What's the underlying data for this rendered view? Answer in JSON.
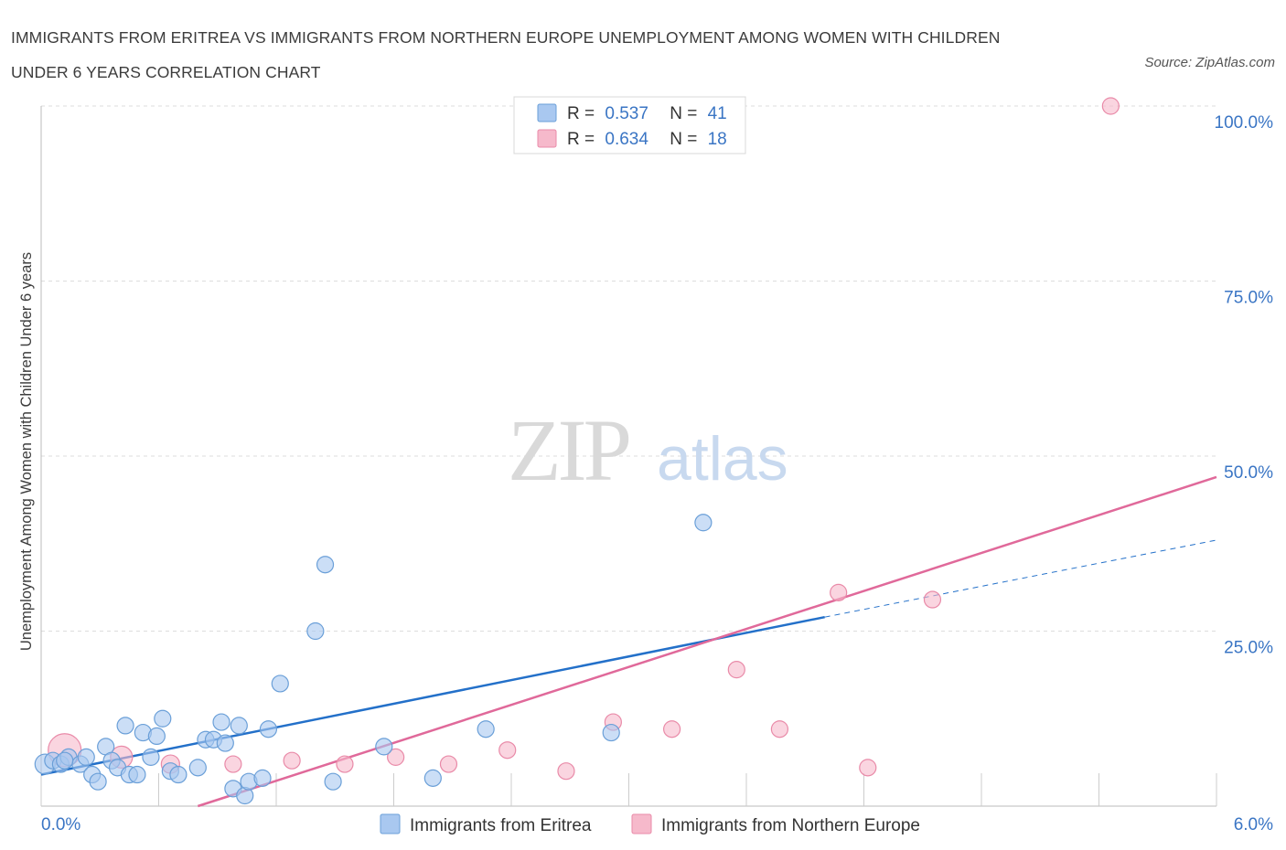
{
  "title_line1": "IMMIGRANTS FROM ERITREA VS IMMIGRANTS FROM NORTHERN EUROPE UNEMPLOYMENT AMONG WOMEN WITH CHILDREN",
  "title_line2": "UNDER 6 YEARS CORRELATION CHART",
  "source": "Source: ZipAtlas.com",
  "watermark": {
    "zip": "ZIP",
    "atlas": "atlas"
  },
  "colors": {
    "blue": "#a9c8f0",
    "blue_stroke": "#6a9fd8",
    "blue_line": "#2370c9",
    "pink": "#f6b9cb",
    "pink_stroke": "#e98aa8",
    "pink_line": "#e0699a",
    "accent_text": "#3a75c4"
  },
  "chart_data": {
    "type": "scatter",
    "title": "Immigrants from Eritrea vs Immigrants from Northern Europe Unemployment Among Women with Children Under 6 years Correlation Chart",
    "xlabel": "",
    "ylabel": "Unemployment Among Women with Children Under 6 years",
    "xlim": [
      0,
      6
    ],
    "ylim": [
      0,
      100
    ],
    "x_tick_labels": [
      "0.0%",
      "6.0%"
    ],
    "y_tick_labels": [
      "100.0%",
      "75.0%",
      "50.0%",
      "25.0%"
    ],
    "y_ticks": [
      100,
      75,
      50,
      25
    ],
    "grid": true,
    "legend": [
      {
        "name": "Immigrants from Eritrea",
        "R_label": "R =",
        "R": "0.537",
        "N_label": "N =",
        "N": "41"
      },
      {
        "name": "Immigrants from Northern Europe",
        "R_label": "R =",
        "R": "0.634",
        "N_label": "N =",
        "N": "18"
      }
    ],
    "series": [
      {
        "name": "Immigrants from Eritrea",
        "points": [
          [
            0.02,
            6.0
          ],
          [
            0.06,
            6.5
          ],
          [
            0.1,
            6.0
          ],
          [
            0.14,
            7.0
          ],
          [
            0.2,
            6.0
          ],
          [
            0.23,
            7.0
          ],
          [
            0.26,
            4.5
          ],
          [
            0.29,
            3.5
          ],
          [
            0.33,
            8.5
          ],
          [
            0.36,
            6.5
          ],
          [
            0.39,
            5.5
          ],
          [
            0.43,
            11.5
          ],
          [
            0.45,
            4.5
          ],
          [
            0.49,
            4.5
          ],
          [
            0.52,
            10.5
          ],
          [
            0.56,
            7.0
          ],
          [
            0.59,
            10.0
          ],
          [
            0.62,
            12.5
          ],
          [
            0.66,
            5.0
          ],
          [
            0.7,
            4.5
          ],
          [
            0.8,
            5.5
          ],
          [
            0.84,
            9.5
          ],
          [
            0.88,
            9.5
          ],
          [
            0.92,
            12.0
          ],
          [
            0.94,
            9.0
          ],
          [
            0.98,
            2.5
          ],
          [
            1.01,
            11.5
          ],
          [
            1.04,
            1.5
          ],
          [
            1.06,
            3.5
          ],
          [
            1.13,
            4.0
          ],
          [
            1.16,
            11.0
          ],
          [
            1.22,
            17.5
          ],
          [
            1.4,
            25.0
          ],
          [
            1.45,
            34.5
          ],
          [
            1.49,
            3.5
          ],
          [
            1.75,
            8.5
          ],
          [
            2.0,
            4.0
          ],
          [
            2.27,
            11.0
          ],
          [
            2.91,
            10.5
          ],
          [
            3.38,
            40.5
          ],
          [
            0.12,
            6.5
          ]
        ],
        "sizes": [
          11,
          9,
          9,
          9,
          9,
          9,
          9,
          9,
          9,
          9,
          9,
          9,
          9,
          9,
          9,
          9,
          9,
          9,
          9,
          9,
          9,
          9,
          9,
          9,
          9,
          9,
          9,
          9,
          9,
          9,
          9,
          9,
          9,
          9,
          9,
          9,
          9,
          9,
          9,
          9,
          9
        ],
        "trend": {
          "x0": 0,
          "y0": 4.5,
          "x1": 4.0,
          "y1": 27.0,
          "x1_dashed": 6.0,
          "y1_dashed": 38.0
        }
      },
      {
        "name": "Immigrants from Northern Europe",
        "points": [
          [
            0.12,
            8.0
          ],
          [
            0.41,
            7.0
          ],
          [
            0.66,
            6.0
          ],
          [
            0.98,
            6.0
          ],
          [
            1.28,
            6.5
          ],
          [
            1.55,
            6.0
          ],
          [
            1.81,
            7.0
          ],
          [
            2.08,
            6.0
          ],
          [
            2.38,
            8.0
          ],
          [
            2.68,
            5.0
          ],
          [
            2.92,
            12.0
          ],
          [
            3.22,
            11.0
          ],
          [
            3.55,
            19.5
          ],
          [
            3.77,
            11.0
          ],
          [
            4.07,
            30.5
          ],
          [
            4.22,
            5.5
          ],
          [
            4.55,
            29.5
          ],
          [
            5.46,
            100.0
          ]
        ],
        "sizes": [
          18,
          12,
          10,
          9,
          9,
          9,
          9,
          9,
          9,
          9,
          9,
          9,
          9,
          9,
          9,
          9,
          9,
          9
        ],
        "trend": {
          "x0": 0.8,
          "y0": 0.0,
          "x1": 6.0,
          "y1": 47.0
        }
      }
    ]
  }
}
